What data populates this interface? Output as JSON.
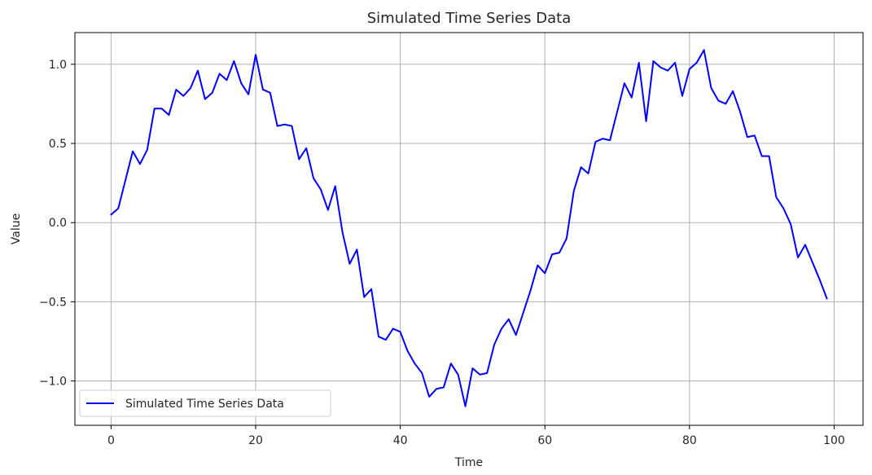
{
  "chart_data": {
    "type": "line",
    "title": "Simulated Time Series Data",
    "xlabel": "Time",
    "ylabel": "Value",
    "xlim": [
      -5,
      104
    ],
    "ylim": [
      -1.28,
      1.2
    ],
    "x_ticks": [
      0,
      20,
      40,
      60,
      80,
      100
    ],
    "x_tick_labels": [
      "0",
      "20",
      "40",
      "60",
      "80",
      "100"
    ],
    "y_ticks": [
      -1.0,
      -0.5,
      0.0,
      0.5,
      1.0
    ],
    "y_tick_labels": [
      "−1.0",
      "−0.5",
      "0.0",
      "0.5",
      "1.0"
    ],
    "grid": true,
    "legend_position": "lower-left",
    "series": [
      {
        "name": "Simulated Time Series Data",
        "color": "#0000ff",
        "x": [
          0,
          1,
          2,
          3,
          4,
          5,
          6,
          7,
          8,
          9,
          10,
          11,
          12,
          13,
          14,
          15,
          16,
          17,
          18,
          19,
          20,
          21,
          22,
          23,
          24,
          25,
          26,
          27,
          28,
          29,
          30,
          31,
          32,
          33,
          34,
          35,
          36,
          37,
          38,
          39,
          40,
          41,
          42,
          43,
          44,
          45,
          46,
          47,
          48,
          49,
          50,
          51,
          52,
          53,
          54,
          55,
          56,
          57,
          58,
          59,
          60,
          61,
          62,
          63,
          64,
          65,
          66,
          67,
          68,
          69,
          70,
          71,
          72,
          73,
          74,
          75,
          76,
          77,
          78,
          79,
          80,
          81,
          82,
          83,
          84,
          85,
          86,
          87,
          88,
          89,
          90,
          91,
          92,
          93,
          94,
          95,
          96,
          97,
          98,
          99
        ],
        "y": [
          0.05,
          0.09,
          0.27,
          0.45,
          0.37,
          0.46,
          0.72,
          0.72,
          0.68,
          0.84,
          0.8,
          0.85,
          0.96,
          0.78,
          0.82,
          0.94,
          0.9,
          1.02,
          0.88,
          0.81,
          1.06,
          0.84,
          0.82,
          0.61,
          0.62,
          0.61,
          0.4,
          0.47,
          0.28,
          0.21,
          0.08,
          0.23,
          -0.06,
          -0.26,
          -0.17,
          -0.47,
          -0.42,
          -0.72,
          -0.74,
          -0.67,
          -0.69,
          -0.81,
          -0.89,
          -0.95,
          -1.1,
          -1.05,
          -1.04,
          -0.89,
          -0.96,
          -1.16,
          -0.92,
          -0.96,
          -0.95,
          -0.77,
          -0.67,
          -0.61,
          -0.71,
          -0.57,
          -0.43,
          -0.27,
          -0.32,
          -0.2,
          -0.19,
          -0.1,
          0.2,
          0.35,
          0.31,
          0.51,
          0.53,
          0.52,
          0.7,
          0.88,
          0.79,
          1.01,
          0.64,
          1.02,
          0.98,
          0.96,
          1.01,
          0.8,
          0.97,
          1.01,
          1.09,
          0.85,
          0.77,
          0.75,
          0.83,
          0.7,
          0.54,
          0.55,
          0.42,
          0.42,
          0.16,
          0.09,
          -0.01,
          -0.22,
          -0.14,
          -0.25,
          -0.36,
          -0.48
        ]
      }
    ]
  }
}
